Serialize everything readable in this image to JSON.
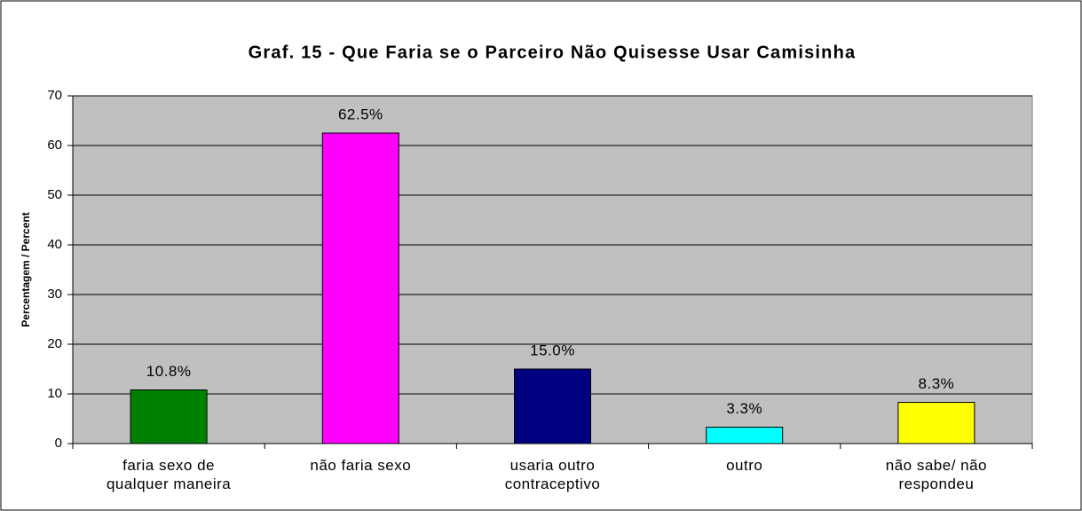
{
  "chart_data": {
    "type": "bar",
    "title": "Graf. 15 - Que Faria se o Parceiro Não Quisesse Usar Camisinha",
    "y_label": "Percentagem / Percent",
    "categories": [
      "faria sexo de qualquer maneira",
      "não faria sexo",
      "usaria outro contraceptivo",
      "outro",
      "não sabe/ não respondeu"
    ],
    "values": [
      10.8,
      62.5,
      15.0,
      3.3,
      8.3
    ],
    "value_labels": [
      "10.8%",
      "62.5%",
      "15.0%",
      "3.3%",
      "8.3%"
    ],
    "colors": [
      "#008000",
      "#ff00ff",
      "#000080",
      "#00ffff",
      "#ffff00"
    ],
    "ylim": [
      0,
      70
    ],
    "yticks": [
      0,
      10,
      20,
      30,
      40,
      50,
      60,
      70
    ],
    "grid": true
  }
}
